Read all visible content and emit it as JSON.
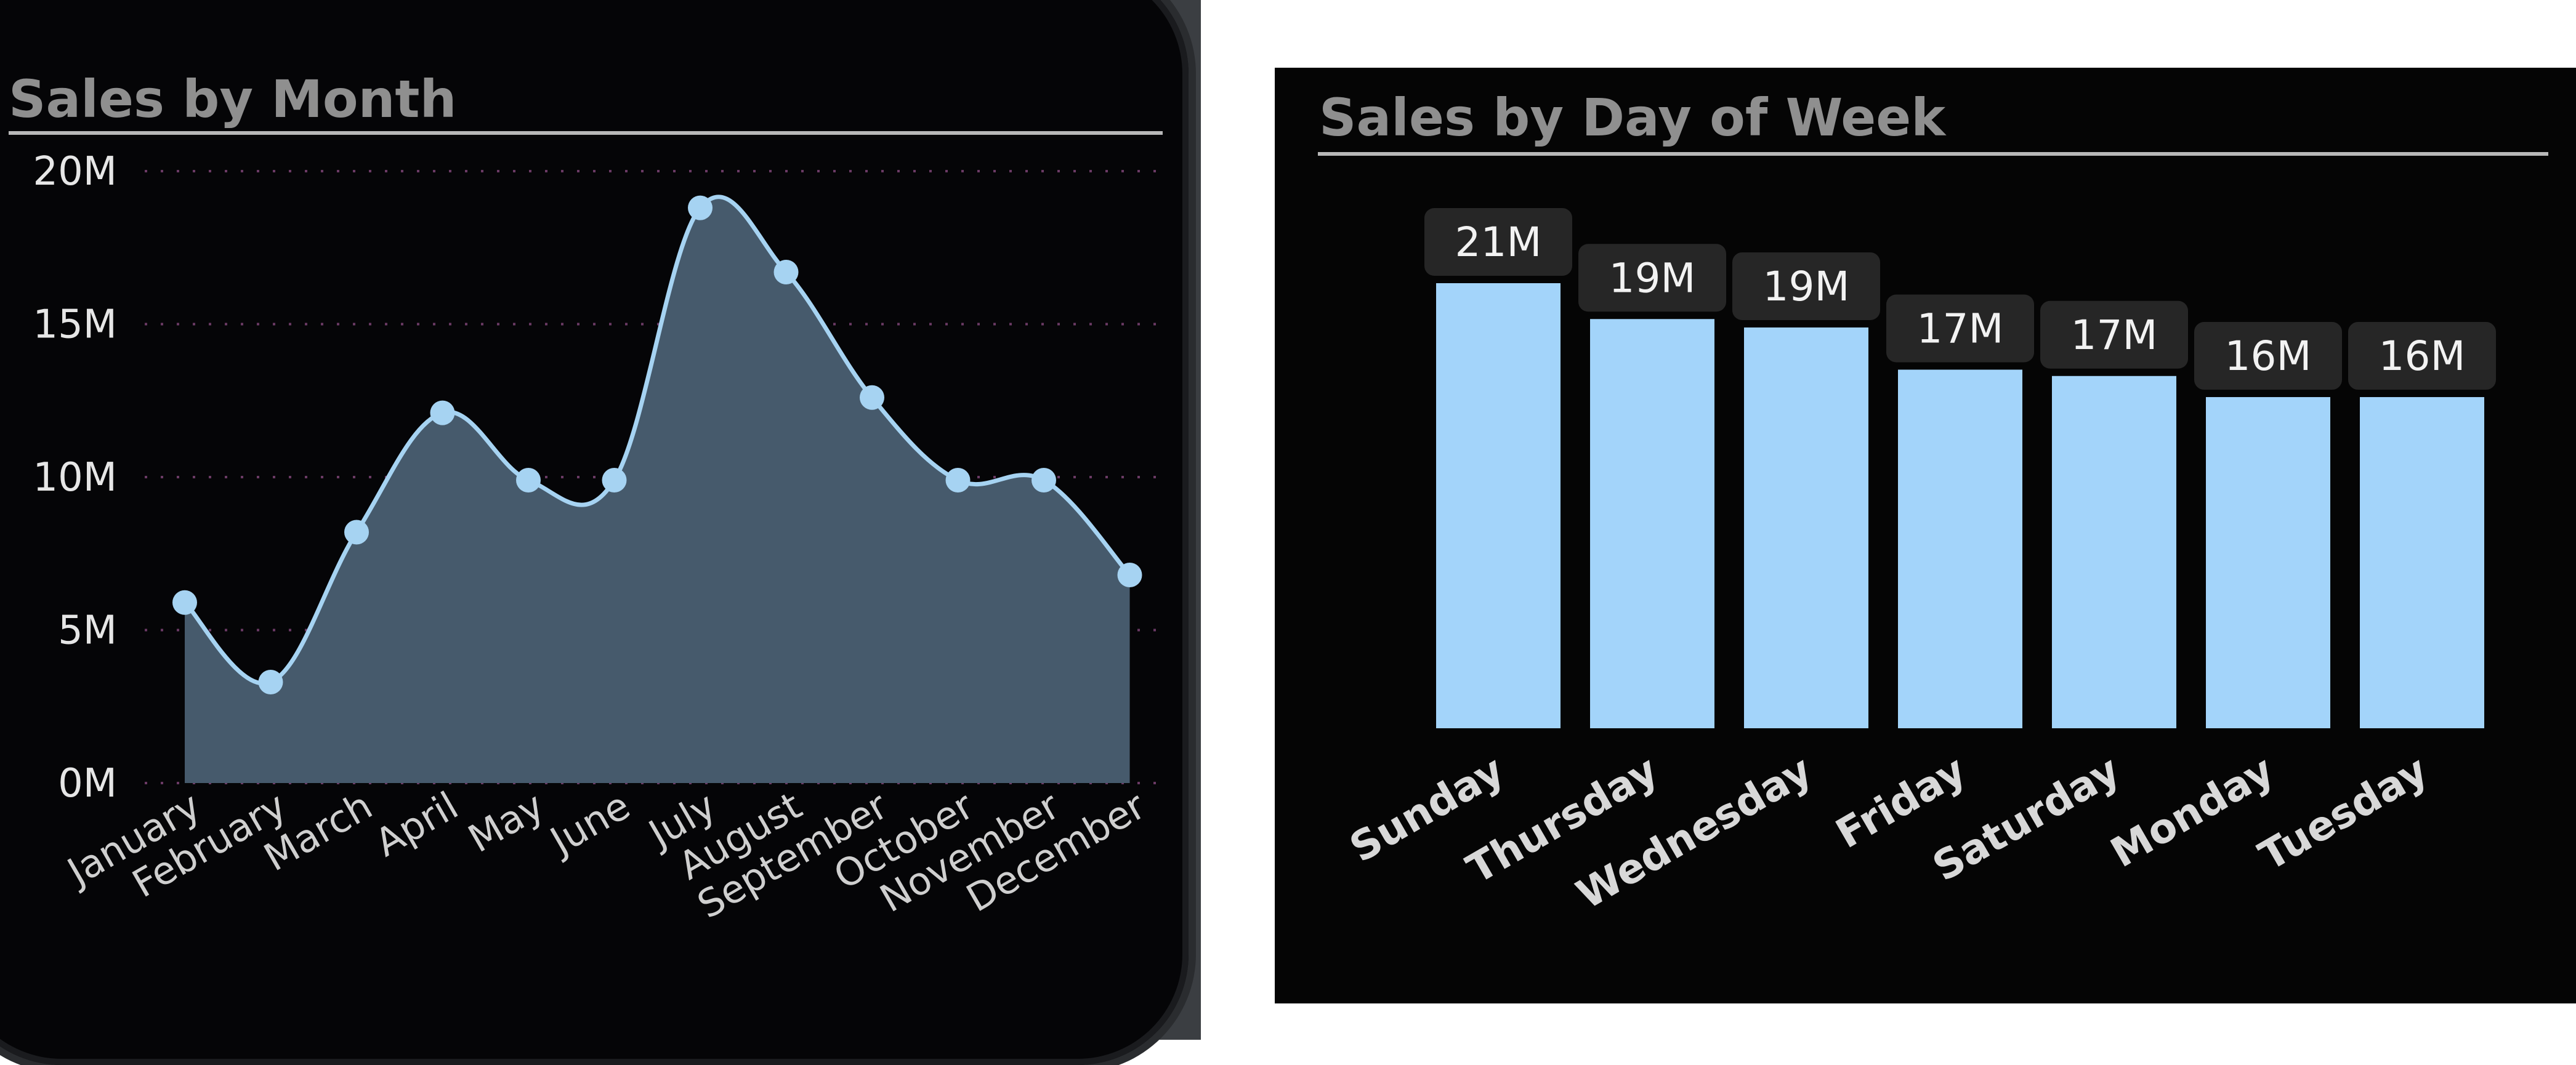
{
  "colors": {
    "area_fill": "#465a6c",
    "line": "#a6d3f2",
    "marker": "#a6d3f2",
    "bar": "#a3d4fa",
    "gridline": "#6a3a64",
    "label_box": "#262626"
  },
  "chart_data": [
    {
      "type": "area",
      "title": "Sales by Month",
      "xlabel": "",
      "ylabel": "",
      "categories": [
        "January",
        "February",
        "March",
        "April",
        "May",
        "June",
        "July",
        "August",
        "September",
        "October",
        "November",
        "December"
      ],
      "values": [
        5.9,
        3.3,
        8.2,
        12.1,
        9.9,
        9.9,
        18.8,
        16.7,
        12.6,
        9.9,
        9.9,
        6.8
      ],
      "unit": "M",
      "ylim": [
        0,
        20
      ],
      "yticks": [
        "0M",
        "5M",
        "10M",
        "15M",
        "20M"
      ],
      "ytick_values": [
        0,
        5,
        10,
        15,
        20
      ],
      "grid": true,
      "markers": true,
      "smooth": true
    },
    {
      "type": "bar",
      "title": "Sales by Day of Week",
      "xlabel": "",
      "ylabel": "",
      "categories": [
        "Sunday",
        "Thursday",
        "Wednesday",
        "Friday",
        "Saturday",
        "Monday",
        "Tuesday"
      ],
      "values": [
        21.1,
        19.4,
        19.0,
        17.0,
        16.7,
        15.7,
        15.7
      ],
      "data_labels": [
        "21M",
        "19M",
        "19M",
        "17M",
        "17M",
        "16M",
        "16M"
      ],
      "grid": false
    }
  ]
}
